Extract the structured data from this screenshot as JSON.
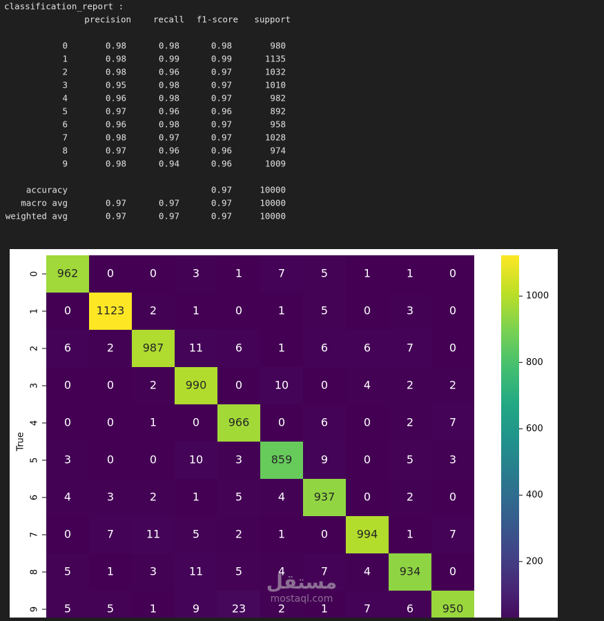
{
  "report": {
    "title": "classification_report :",
    "columns": [
      "precision",
      "recall",
      "f1-score",
      "support"
    ],
    "rows": [
      {
        "label": "0",
        "values": [
          0.98,
          0.98,
          0.98,
          980
        ]
      },
      {
        "label": "1",
        "values": [
          0.98,
          0.99,
          0.99,
          1135
        ]
      },
      {
        "label": "2",
        "values": [
          0.98,
          0.96,
          0.97,
          1032
        ]
      },
      {
        "label": "3",
        "values": [
          0.95,
          0.98,
          0.97,
          1010
        ]
      },
      {
        "label": "4",
        "values": [
          0.96,
          0.98,
          0.97,
          982
        ]
      },
      {
        "label": "5",
        "values": [
          0.97,
          0.96,
          0.96,
          892
        ]
      },
      {
        "label": "6",
        "values": [
          0.96,
          0.98,
          0.97,
          958
        ]
      },
      {
        "label": "7",
        "values": [
          0.98,
          0.97,
          0.97,
          1028
        ]
      },
      {
        "label": "8",
        "values": [
          0.97,
          0.96,
          0.96,
          974
        ]
      },
      {
        "label": "9",
        "values": [
          0.98,
          0.94,
          0.96,
          1009
        ]
      }
    ],
    "summary": [
      {
        "label": "accuracy",
        "values": [
          null,
          null,
          0.97,
          10000
        ]
      },
      {
        "label": "macro avg",
        "values": [
          0.97,
          0.97,
          0.97,
          10000
        ]
      },
      {
        "label": "weighted avg",
        "values": [
          0.97,
          0.97,
          0.97,
          10000
        ]
      }
    ]
  },
  "chart_data": {
    "type": "heatmap",
    "ylabel": "True",
    "categories": [
      "0",
      "1",
      "2",
      "3",
      "4",
      "5",
      "6",
      "7",
      "8",
      "9"
    ],
    "values": [
      [
        962,
        0,
        0,
        3,
        1,
        7,
        5,
        1,
        1,
        0
      ],
      [
        0,
        1123,
        2,
        1,
        0,
        1,
        5,
        0,
        3,
        0
      ],
      [
        6,
        2,
        987,
        11,
        6,
        1,
        6,
        6,
        7,
        0
      ],
      [
        0,
        0,
        2,
        990,
        0,
        10,
        0,
        4,
        2,
        2
      ],
      [
        0,
        0,
        1,
        0,
        966,
        0,
        6,
        0,
        2,
        7
      ],
      [
        3,
        0,
        0,
        10,
        3,
        859,
        9,
        0,
        5,
        3
      ],
      [
        4,
        3,
        2,
        1,
        5,
        4,
        937,
        0,
        2,
        0
      ],
      [
        0,
        7,
        11,
        5,
        2,
        1,
        0,
        994,
        1,
        7
      ],
      [
        5,
        1,
        3,
        11,
        5,
        4,
        7,
        4,
        934,
        0
      ],
      [
        5,
        5,
        1,
        9,
        23,
        2,
        1,
        7,
        6,
        950
      ]
    ],
    "colormap": "viridis",
    "clim": [
      0,
      1123
    ],
    "cticks": [
      200,
      400,
      600,
      800,
      1000
    ]
  },
  "watermark": {
    "arabic": "مستقل",
    "latin": "mostaql.com"
  }
}
